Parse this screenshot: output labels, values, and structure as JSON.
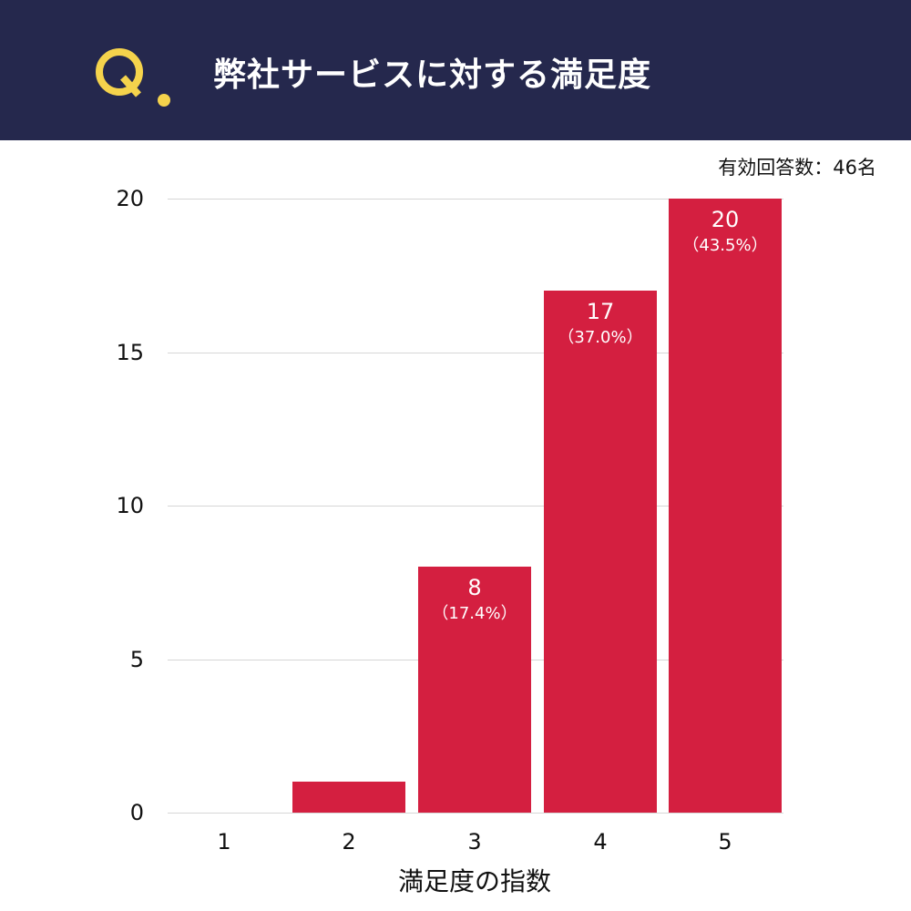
{
  "header": {
    "q_label": "Q.",
    "title": "弊社サービスに対する満足度"
  },
  "respondents": "有効回答数：46名",
  "colors": {
    "header_bg": "#25284d",
    "accent": "#f5d34c",
    "bar": "#d41f40"
  },
  "chart_data": {
    "type": "bar",
    "title": "弊社サービスに対する満足度",
    "categories": [
      "1",
      "2",
      "3",
      "4",
      "5"
    ],
    "values": [
      0,
      1,
      8,
      17,
      20
    ],
    "percent_labels": [
      "",
      "",
      "（17.4%）",
      "（37.0%）",
      "（43.5%）"
    ],
    "value_labels": [
      "",
      "",
      "8",
      "17",
      "20"
    ],
    "xlabel": "満足度の指数",
    "ylabel": "",
    "yticks": [
      "0",
      "5",
      "10",
      "15",
      "20"
    ],
    "ylim": [
      0,
      20
    ],
    "grid": true,
    "annotation": "有効回答数：46名"
  }
}
